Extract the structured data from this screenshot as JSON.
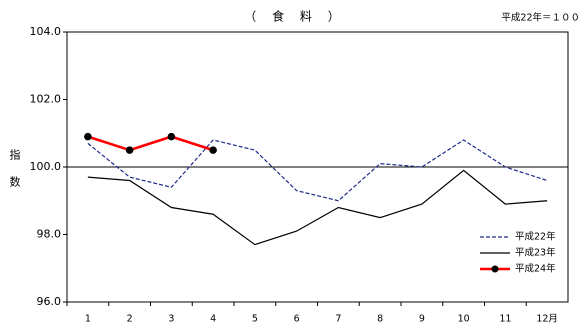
{
  "chart_data": {
    "type": "line",
    "title": "（ 食 料 ）",
    "subtitle": "平成22年＝１００",
    "ylabel": "指数",
    "categories": [
      "1",
      "2",
      "3",
      "4",
      "5",
      "6",
      "7",
      "8",
      "9",
      "10",
      "11",
      "12月"
    ],
    "series": [
      {
        "name": "平成22年",
        "color": "#1f2a8a",
        "dashed": true,
        "markers": false,
        "values": [
          100.7,
          99.7,
          99.4,
          100.8,
          100.5,
          99.3,
          99.0,
          100.1,
          100.0,
          100.8,
          100.0,
          99.6
        ]
      },
      {
        "name": "平成23年",
        "color": "#000000",
        "dashed": false,
        "markers": false,
        "values": [
          99.7,
          99.6,
          98.8,
          98.6,
          97.7,
          98.1,
          98.8,
          98.5,
          98.9,
          99.9,
          98.9,
          99.0
        ]
      },
      {
        "name": "平成24年",
        "color": "#ff0000",
        "dashed": false,
        "markers": true,
        "values": [
          100.9,
          100.5,
          100.9,
          100.5,
          null,
          null,
          null,
          null,
          null,
          null,
          null,
          null
        ]
      }
    ],
    "ylim": [
      96,
      104
    ],
    "yticks": [
      {
        "value": 96,
        "label": "96.0"
      },
      {
        "value": 98,
        "label": "98.0"
      },
      {
        "value": 100,
        "label": "100.0"
      },
      {
        "value": 102,
        "label": "102.0"
      },
      {
        "value": 104,
        "label": "104.0"
      }
    ],
    "reference_line": 100,
    "legend": "lower right"
  }
}
